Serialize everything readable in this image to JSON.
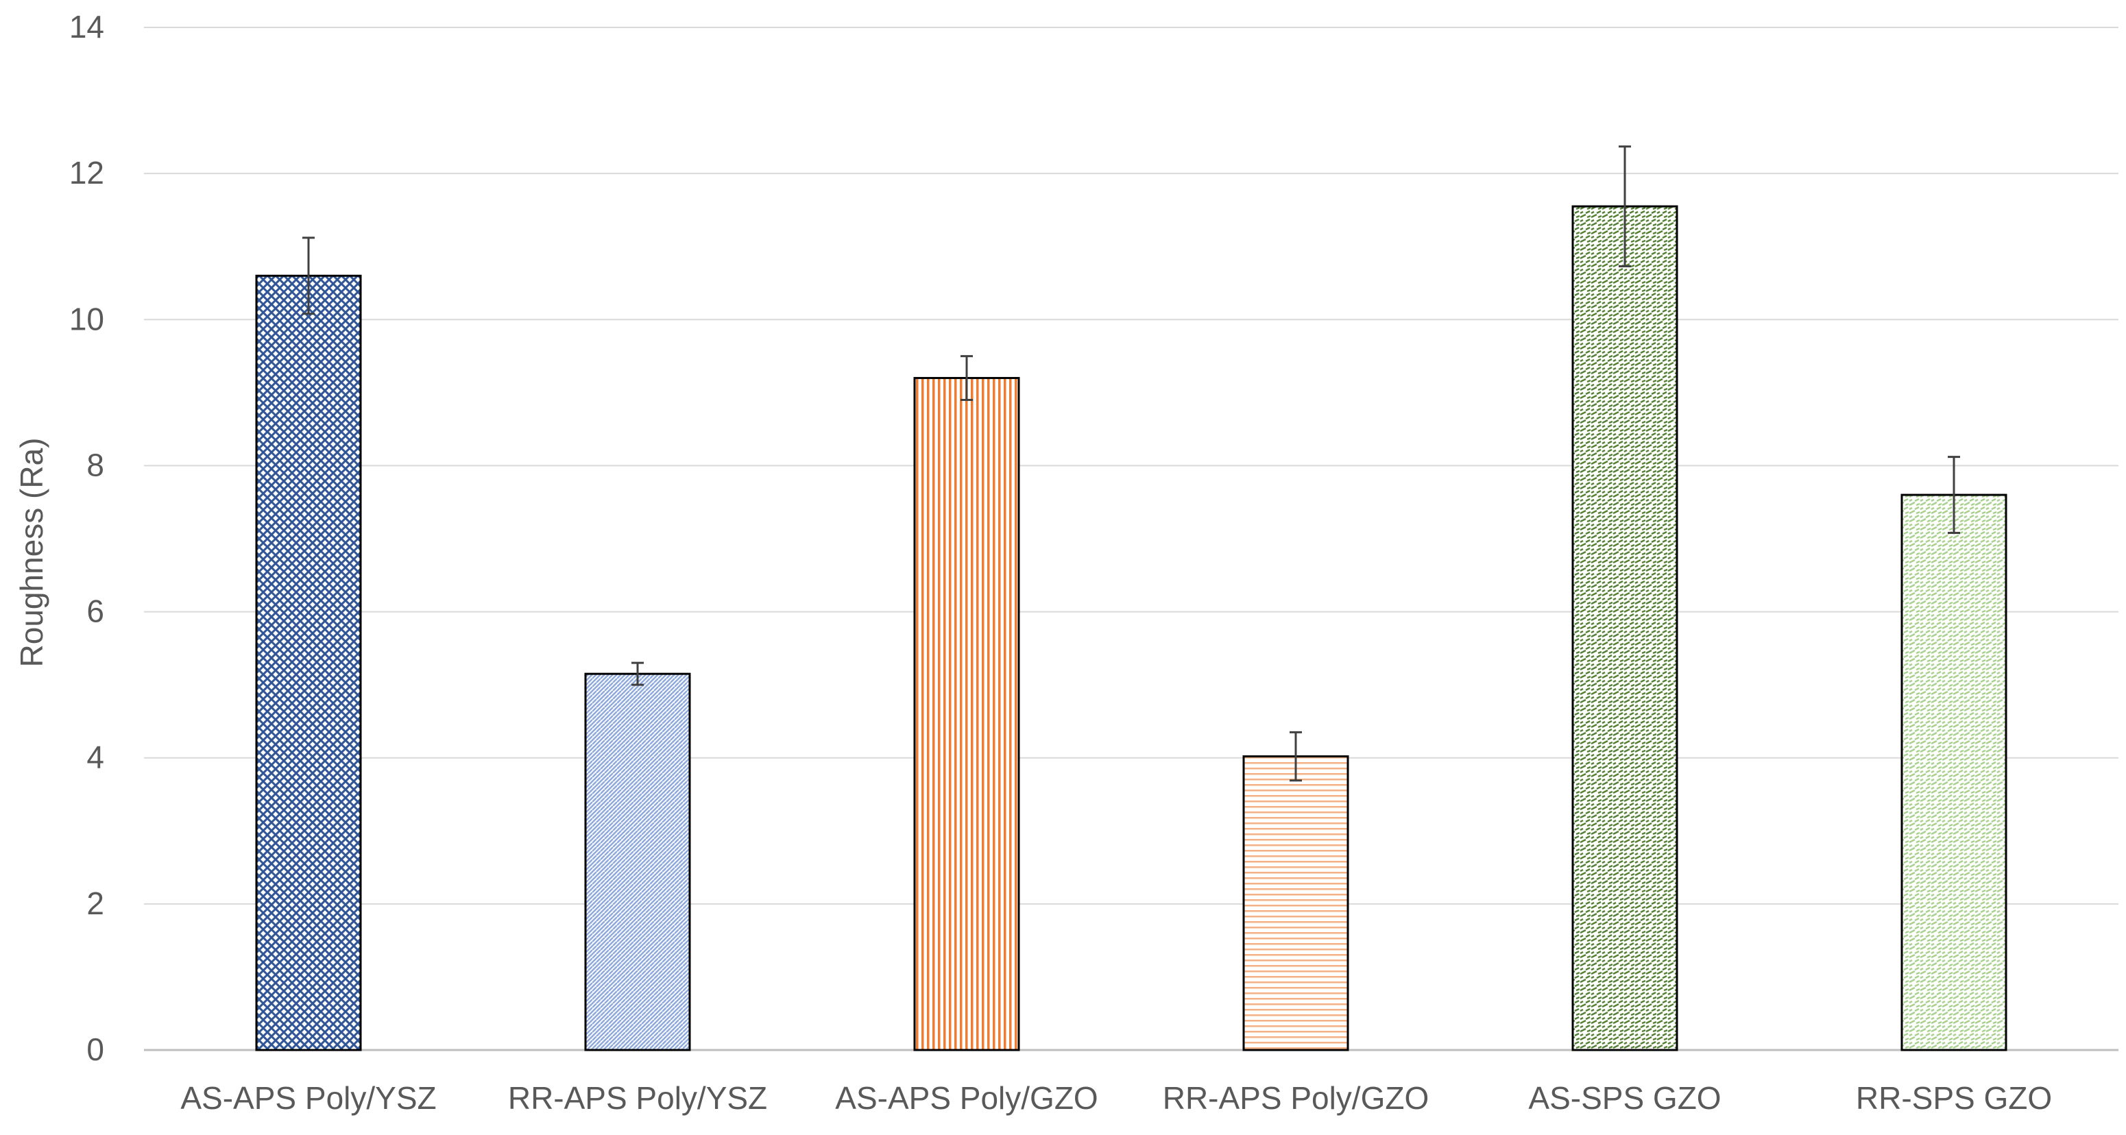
{
  "chart_data": {
    "type": "bar",
    "title": "",
    "xlabel": "",
    "ylabel": "Roughness (Ra)",
    "ylim": [
      0,
      14
    ],
    "yticks": [
      0,
      2,
      4,
      6,
      8,
      10,
      12,
      14
    ],
    "grid": true,
    "legend": "none",
    "categories": [
      "AS-APS Poly/YSZ",
      "RR-APS Poly/YSZ",
      "AS-APS Poly/GZO",
      "RR-APS Poly/GZO",
      "AS-SPS GZO",
      "RR-SPS GZO"
    ],
    "values": [
      10.6,
      5.15,
      9.2,
      4.02,
      11.55,
      7.6
    ],
    "errors": [
      0.52,
      0.15,
      0.3,
      0.33,
      0.82,
      0.52
    ],
    "colors": [
      "#2f5597",
      "#8faadc",
      "#ed7d31",
      "#f4b183",
      "#548235",
      "#a9d18e"
    ],
    "patterns": [
      "crosshatch",
      "diagonal",
      "vertical",
      "horizontal",
      "dashed-diagonal",
      "dashed-diagonal-light"
    ]
  }
}
